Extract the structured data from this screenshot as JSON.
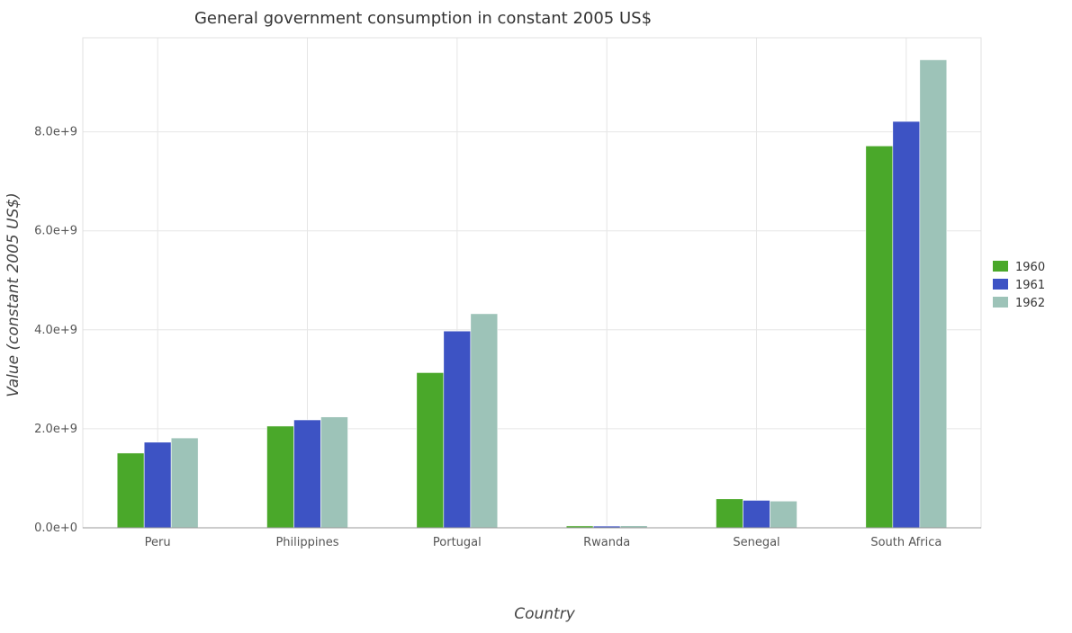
{
  "chart_data": {
    "type": "bar",
    "title": "General government consumption in constant 2005 US$",
    "xlabel": "Country",
    "ylabel": "Value (constant 2005 US$)",
    "categories": [
      "Peru",
      "Philippines",
      "Portugal",
      "Rwanda",
      "Senegal",
      "South Africa"
    ],
    "series": [
      {
        "name": "1960",
        "color": "#4aa82a",
        "values": [
          1510000000,
          2055000000,
          3135000000,
          38000000,
          585000000,
          7715000000
        ]
      },
      {
        "name": "1961",
        "color": "#3d53c4",
        "values": [
          1730000000,
          2180000000,
          3975000000,
          35000000,
          555000000,
          8210000000
        ]
      },
      {
        "name": "1962",
        "color": "#9dc3b8",
        "values": [
          1815000000,
          2240000000,
          4325000000,
          42000000,
          540000000,
          9455000000
        ]
      }
    ],
    "yticks": [
      0,
      2000000000,
      4000000000,
      6000000000,
      8000000000
    ],
    "ytick_labels": [
      "0.0e+0",
      "2.0e+9",
      "4.0e+9",
      "6.0e+9",
      "8.0e+9"
    ],
    "ylim": [
      0,
      9900000000
    ],
    "grid": true,
    "legend_position": "right"
  }
}
